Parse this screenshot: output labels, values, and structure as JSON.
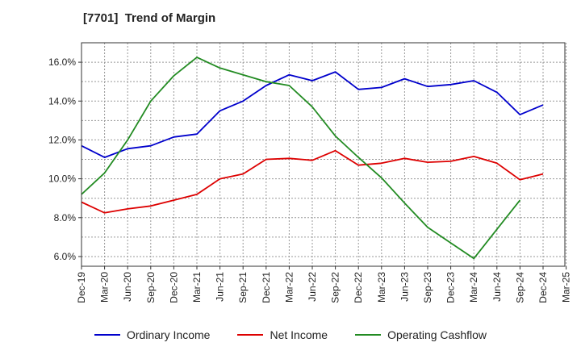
{
  "chart_data": {
    "type": "line",
    "title": "[7701]  Trend of Margin",
    "categories": [
      "Dec-19",
      "Mar-20",
      "Jun-20",
      "Sep-20",
      "Dec-20",
      "Mar-21",
      "Jun-21",
      "Sep-21",
      "Dec-21",
      "Mar-22",
      "Jun-22",
      "Sep-22",
      "Dec-22",
      "Mar-23",
      "Jun-23",
      "Sep-23",
      "Dec-23",
      "Mar-24",
      "Jun-24",
      "Sep-24",
      "Dec-24",
      "Mar-25"
    ],
    "y_ticks": [
      "6.0%",
      "8.0%",
      "10.0%",
      "12.0%",
      "14.0%",
      "16.0%"
    ],
    "ylim": [
      5.5,
      17.0
    ],
    "grid": true,
    "legend_position": "bottom",
    "series": [
      {
        "name": "Ordinary Income",
        "color": "#0000cc",
        "values": [
          11.7,
          11.1,
          11.55,
          11.7,
          12.15,
          12.3,
          13.5,
          14.0,
          14.8,
          15.35,
          15.05,
          15.5,
          14.6,
          14.7,
          15.15,
          14.75,
          14.85,
          15.05,
          14.45,
          13.3,
          13.8,
          null
        ]
      },
      {
        "name": "Net Income",
        "color": "#dd0000",
        "values": [
          8.8,
          8.25,
          8.45,
          8.6,
          8.9,
          9.2,
          10.0,
          10.25,
          11.0,
          11.05,
          10.95,
          11.45,
          10.7,
          10.8,
          11.05,
          10.85,
          10.9,
          11.15,
          10.8,
          9.95,
          10.25,
          null
        ]
      },
      {
        "name": "Operating Cashflow",
        "color": "#228b22",
        "values": [
          9.2,
          10.3,
          12.0,
          14.0,
          15.3,
          16.25,
          15.7,
          15.35,
          15.0,
          14.8,
          13.7,
          12.2,
          11.1,
          10.05,
          8.75,
          7.5,
          6.7,
          5.9,
          7.4,
          8.9,
          null,
          null
        ]
      }
    ]
  }
}
